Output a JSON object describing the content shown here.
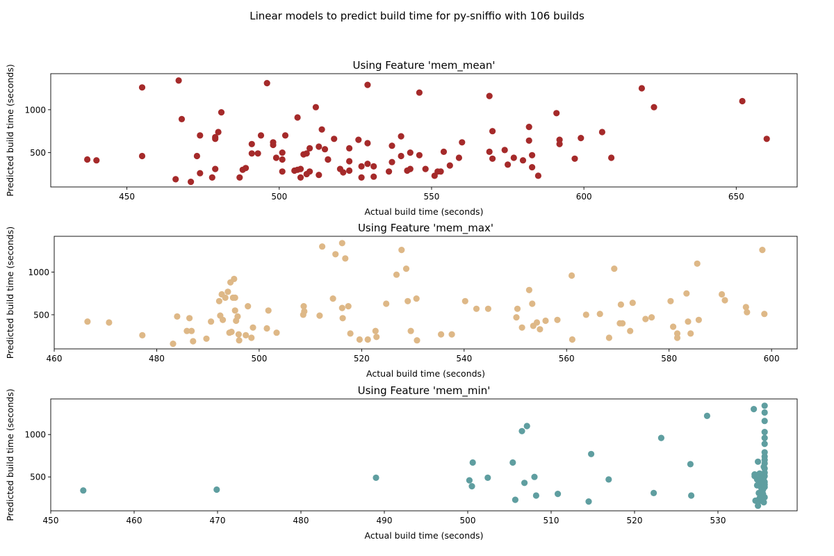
{
  "suptitle": "Linear models to predict build time for py-sniffio with 106 builds",
  "chart_data": [
    {
      "type": "scatter",
      "title": "Using Feature 'mem_mean'",
      "xlabel": "Actual build time (seconds)",
      "ylabel": "Predicted build time (seconds)",
      "color": "#a52a2a",
      "xlim": [
        425,
        670
      ],
      "ylim": [
        100,
        1420
      ],
      "xticks": [
        450,
        500,
        550,
        600,
        650
      ],
      "yticks": [
        500,
        1000
      ],
      "grid": false,
      "points": [
        [
          437,
          420
        ],
        [
          440,
          410
        ],
        [
          455,
          1260
        ],
        [
          455,
          460
        ],
        [
          466,
          190
        ],
        [
          467,
          1340
        ],
        [
          468,
          890
        ],
        [
          471,
          160
        ],
        [
          473,
          460
        ],
        [
          474,
          260
        ],
        [
          474,
          700
        ],
        [
          478,
          210
        ],
        [
          479,
          680
        ],
        [
          479,
          660
        ],
        [
          479,
          310
        ],
        [
          480,
          740
        ],
        [
          481,
          970
        ],
        [
          487,
          210
        ],
        [
          488,
          300
        ],
        [
          489,
          320
        ],
        [
          491,
          490
        ],
        [
          491,
          600
        ],
        [
          493,
          490
        ],
        [
          494,
          700
        ],
        [
          496,
          1310
        ],
        [
          498,
          590
        ],
        [
          498,
          620
        ],
        [
          499,
          440
        ],
        [
          501,
          420
        ],
        [
          501,
          280
        ],
        [
          501,
          500
        ],
        [
          502,
          700
        ],
        [
          505,
          290
        ],
        [
          506,
          300
        ],
        [
          506,
          910
        ],
        [
          507,
          310
        ],
        [
          507,
          210
        ],
        [
          508,
          480
        ],
        [
          509,
          490
        ],
        [
          509,
          250
        ],
        [
          510,
          550
        ],
        [
          510,
          280
        ],
        [
          512,
          1030
        ],
        [
          513,
          240
        ],
        [
          513,
          570
        ],
        [
          514,
          770
        ],
        [
          515,
          540
        ],
        [
          516,
          420
        ],
        [
          516,
          420
        ],
        [
          518,
          660
        ],
        [
          520,
          310
        ],
        [
          521,
          270
        ],
        [
          523,
          400
        ],
        [
          523,
          550
        ],
        [
          523,
          290
        ],
        [
          526,
          650
        ],
        [
          527,
          340
        ],
        [
          527,
          210
        ],
        [
          529,
          1290
        ],
        [
          529,
          370
        ],
        [
          529,
          610
        ],
        [
          531,
          340
        ],
        [
          531,
          220
        ],
        [
          536,
          280
        ],
        [
          537,
          580
        ],
        [
          537,
          390
        ],
        [
          540,
          460
        ],
        [
          540,
          690
        ],
        [
          542,
          290
        ],
        [
          543,
          500
        ],
        [
          543,
          310
        ],
        [
          546,
          1200
        ],
        [
          546,
          470
        ],
        [
          548,
          310
        ],
        [
          551,
          230
        ],
        [
          552,
          280
        ],
        [
          553,
          280
        ],
        [
          554,
          510
        ],
        [
          556,
          350
        ],
        [
          559,
          440
        ],
        [
          560,
          620
        ],
        [
          569,
          1160
        ],
        [
          569,
          510
        ],
        [
          570,
          430
        ],
        [
          570,
          750
        ],
        [
          574,
          530
        ],
        [
          575,
          360
        ],
        [
          577,
          440
        ],
        [
          580,
          410
        ],
        [
          582,
          800
        ],
        [
          582,
          640
        ],
        [
          583,
          330
        ],
        [
          583,
          470
        ],
        [
          585,
          230
        ],
        [
          591,
          960
        ],
        [
          592,
          650
        ],
        [
          592,
          600
        ],
        [
          597,
          430
        ],
        [
          599,
          670
        ],
        [
          606,
          740
        ],
        [
          609,
          440
        ],
        [
          619,
          1250
        ],
        [
          623,
          1030
        ],
        [
          652,
          1100
        ],
        [
          660,
          660
        ]
      ]
    },
    {
      "type": "scatter",
      "title": "Using Feature 'mem_max'",
      "xlabel": "Actual build time (seconds)",
      "ylabel": "Predicted build time (seconds)",
      "color": "#deb887",
      "xlim": [
        460,
        605
      ],
      "ylim": [
        100,
        1420
      ],
      "xticks": [
        460,
        480,
        500,
        520,
        540,
        560,
        580,
        600
      ],
      "yticks": [
        500,
        1000
      ],
      "grid": false,
      "points": [
        [
          466.5,
          420
        ],
        [
          470.7,
          410
        ],
        [
          477.2,
          260
        ],
        [
          483.2,
          160
        ],
        [
          484,
          480
        ],
        [
          485.9,
          310
        ],
        [
          486.4,
          460
        ],
        [
          486.8,
          310
        ],
        [
          487.1,
          190
        ],
        [
          489.7,
          220
        ],
        [
          490.6,
          420
        ],
        [
          492.2,
          660
        ],
        [
          492.4,
          490
        ],
        [
          492.7,
          740
        ],
        [
          492.9,
          440
        ],
        [
          493.4,
          700
        ],
        [
          493.9,
          770
        ],
        [
          494.2,
          290
        ],
        [
          494.4,
          880
        ],
        [
          494.6,
          300
        ],
        [
          494.9,
          700
        ],
        [
          495.1,
          920
        ],
        [
          495.3,
          700
        ],
        [
          495.3,
          550
        ],
        [
          495.5,
          430
        ],
        [
          495.8,
          480
        ],
        [
          496,
          270
        ],
        [
          496.1,
          200
        ],
        [
          497.4,
          260
        ],
        [
          497.8,
          600
        ],
        [
          498.5,
          230
        ],
        [
          498.8,
          350
        ],
        [
          501.5,
          340
        ],
        [
          501.8,
          550
        ],
        [
          503.4,
          290
        ],
        [
          508.6,
          500
        ],
        [
          508.7,
          600
        ],
        [
          508.8,
          540
        ],
        [
          511.8,
          490
        ],
        [
          512.3,
          1300
        ],
        [
          514.4,
          690
        ],
        [
          514.9,
          1210
        ],
        [
          516.2,
          1340
        ],
        [
          516.2,
          580
        ],
        [
          516.3,
          460
        ],
        [
          516.8,
          1160
        ],
        [
          517.4,
          600
        ],
        [
          517.8,
          280
        ],
        [
          519.6,
          210
        ],
        [
          521.2,
          210
        ],
        [
          522.7,
          310
        ],
        [
          522.9,
          240
        ],
        [
          524.8,
          630
        ],
        [
          526.8,
          970
        ],
        [
          527.8,
          1260
        ],
        [
          528.7,
          1040
        ],
        [
          529,
          660
        ],
        [
          529.6,
          310
        ],
        [
          530.7,
          690
        ],
        [
          530.8,
          200
        ],
        [
          535.5,
          270
        ],
        [
          537.6,
          270
        ],
        [
          540.2,
          660
        ],
        [
          542.4,
          570
        ],
        [
          544.7,
          570
        ],
        [
          550.2,
          470
        ],
        [
          550.4,
          570
        ],
        [
          551.3,
          350
        ],
        [
          552.7,
          790
        ],
        [
          553.3,
          630
        ],
        [
          553.5,
          370
        ],
        [
          554.2,
          410
        ],
        [
          554.8,
          330
        ],
        [
          555.9,
          430
        ],
        [
          558.2,
          440
        ],
        [
          561,
          960
        ],
        [
          561.1,
          210
        ],
        [
          563.8,
          500
        ],
        [
          566.5,
          510
        ],
        [
          568.3,
          230
        ],
        [
          569.3,
          1040
        ],
        [
          570.4,
          400
        ],
        [
          570.6,
          620
        ],
        [
          570.9,
          400
        ],
        [
          572.4,
          310
        ],
        [
          572.9,
          640
        ],
        [
          575.4,
          450
        ],
        [
          576.6,
          470
        ],
        [
          580.3,
          660
        ],
        [
          580.8,
          360
        ],
        [
          581.6,
          280
        ],
        [
          581.6,
          230
        ],
        [
          583.4,
          750
        ],
        [
          583.7,
          420
        ],
        [
          584.2,
          280
        ],
        [
          585.5,
          1100
        ],
        [
          585.8,
          440
        ],
        [
          590.3,
          740
        ],
        [
          590.9,
          670
        ],
        [
          595,
          590
        ],
        [
          595.2,
          530
        ],
        [
          598.2,
          1260
        ],
        [
          598.6,
          510
        ]
      ]
    },
    {
      "type": "scatter",
      "title": "Using Feature 'mem_min'",
      "xlabel": "Actual build time (seconds)",
      "ylabel": "Predicted build time (seconds)",
      "color": "#5f9ea0",
      "xlim": [
        450,
        539.5
      ],
      "ylim": [
        100,
        1420
      ],
      "xticks": [
        450,
        460,
        470,
        480,
        490,
        500,
        510,
        520,
        530
      ],
      "yticks": [
        500,
        1000
      ],
      "grid": false,
      "points": [
        [
          453.9,
          340
        ],
        [
          469.9,
          350
        ],
        [
          489,
          490
        ],
        [
          500.2,
          460
        ],
        [
          500.5,
          390
        ],
        [
          500.6,
          670
        ],
        [
          502.4,
          490
        ],
        [
          505.4,
          670
        ],
        [
          505.7,
          230
        ],
        [
          506.5,
          1040
        ],
        [
          506.8,
          430
        ],
        [
          507.1,
          1100
        ],
        [
          508,
          500
        ],
        [
          508.2,
          280
        ],
        [
          510.8,
          300
        ],
        [
          514.5,
          210
        ],
        [
          514.8,
          770
        ],
        [
          516.9,
          470
        ],
        [
          522.3,
          310
        ],
        [
          523.2,
          960
        ],
        [
          526.7,
          650
        ],
        [
          526.8,
          280
        ],
        [
          528.7,
          1220
        ],
        [
          534.3,
          1300
        ],
        [
          534.4,
          530
        ],
        [
          534.4,
          510
        ],
        [
          534.5,
          220
        ],
        [
          534.7,
          470
        ],
        [
          534.7,
          400
        ],
        [
          534.8,
          680
        ],
        [
          534.8,
          160
        ],
        [
          534.9,
          410
        ],
        [
          534.9,
          310
        ],
        [
          535,
          540
        ],
        [
          535,
          460
        ],
        [
          535,
          250
        ],
        [
          535,
          230
        ],
        [
          535.1,
          490
        ],
        [
          535.1,
          220
        ],
        [
          535.1,
          280
        ],
        [
          535.2,
          420
        ],
        [
          535.2,
          370
        ],
        [
          535.3,
          320
        ],
        [
          535.3,
          270
        ],
        [
          535.4,
          350
        ],
        [
          535.4,
          300
        ],
        [
          535.5,
          490
        ],
        [
          535.5,
          200
        ],
        [
          535.5,
          620
        ],
        [
          535.6,
          1340
        ],
        [
          535.6,
          1260
        ],
        [
          535.6,
          1160
        ],
        [
          535.6,
          1030
        ],
        [
          535.6,
          960
        ],
        [
          535.6,
          890
        ],
        [
          535.6,
          790
        ],
        [
          535.6,
          740
        ],
        [
          535.6,
          700
        ],
        [
          535.6,
          660
        ],
        [
          535.6,
          600
        ],
        [
          535.6,
          550
        ],
        [
          535.6,
          510
        ],
        [
          535.6,
          440
        ],
        [
          535.6,
          410
        ],
        [
          535.6,
          380
        ],
        [
          535.6,
          260
        ]
      ]
    }
  ]
}
